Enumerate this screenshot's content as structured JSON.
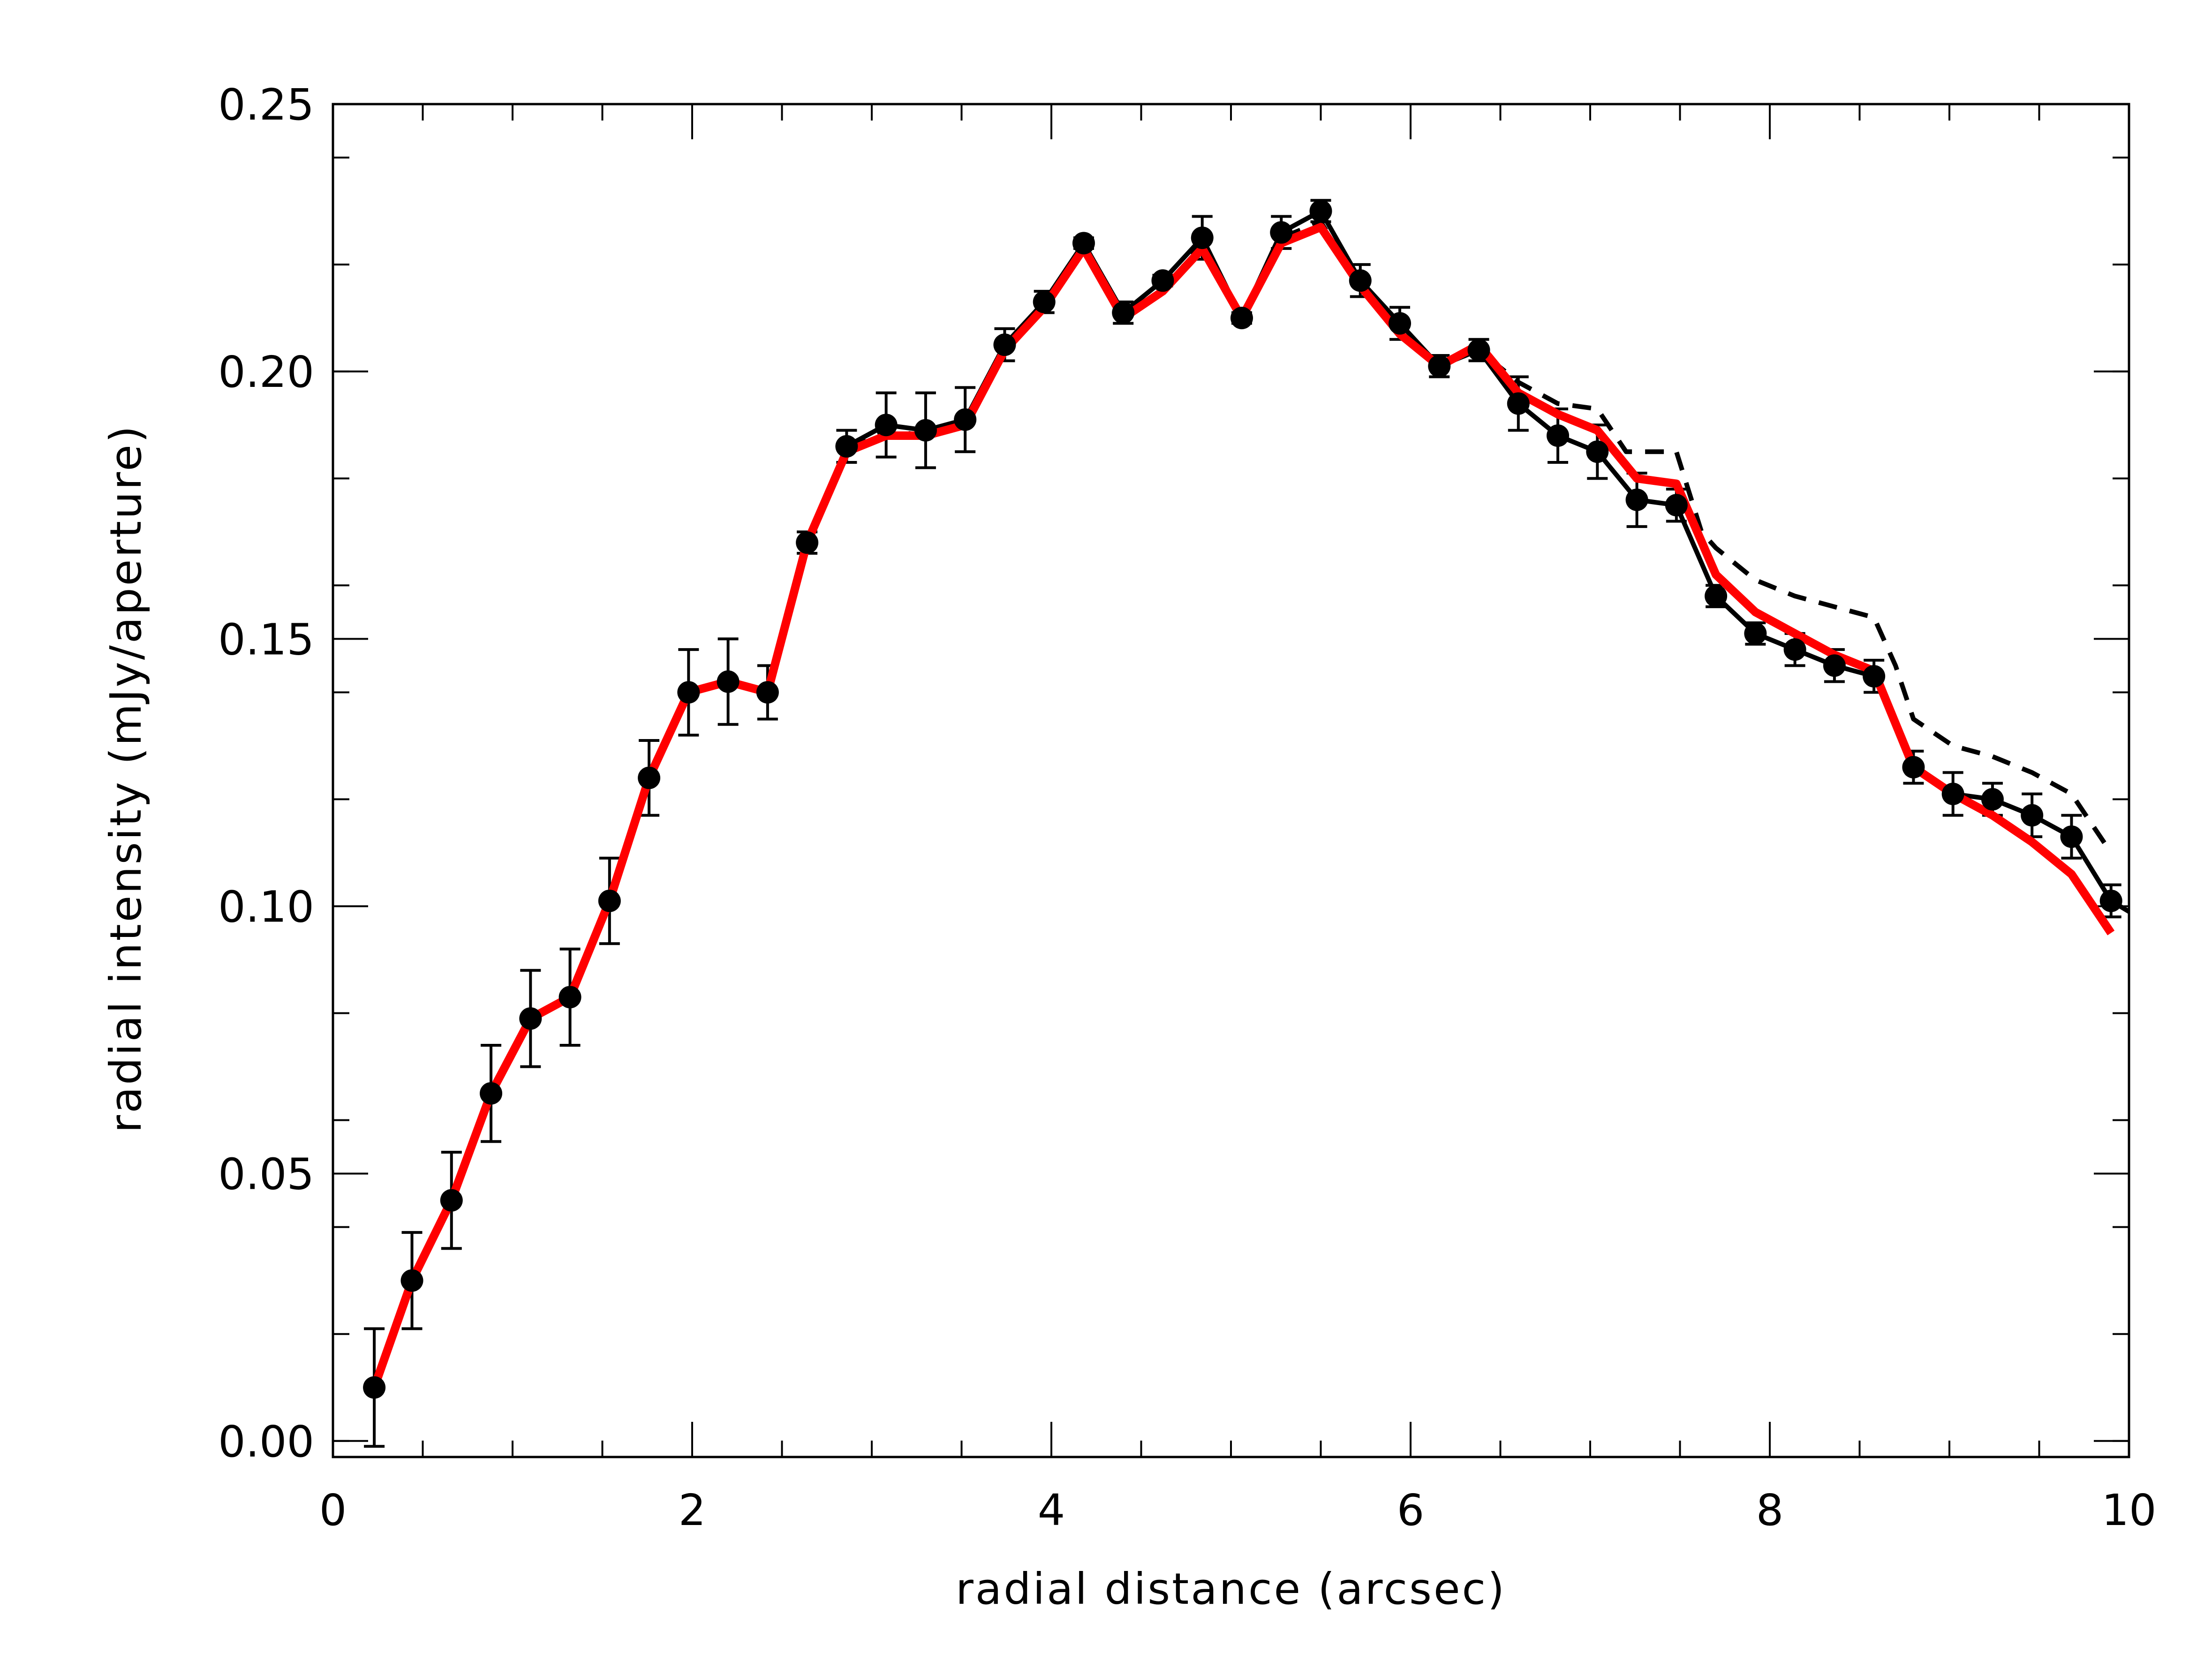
{
  "chart_data": {
    "type": "line",
    "xlabel": "radial distance (arcsec)",
    "ylabel": "radial intensity (mJy/aperture)",
    "xlim": [
      0,
      10
    ],
    "ylim": [
      -0.003,
      0.25
    ],
    "x_ticks": [
      {
        "value": 0,
        "label": "0"
      },
      {
        "value": 2,
        "label": "2"
      },
      {
        "value": 4,
        "label": "4"
      },
      {
        "value": 6,
        "label": "6"
      },
      {
        "value": 8,
        "label": "8"
      },
      {
        "value": 10,
        "label": "10"
      }
    ],
    "y_ticks": [
      {
        "value": 0.0,
        "label": "0.00"
      },
      {
        "value": 0.05,
        "label": "0.05"
      },
      {
        "value": 0.1,
        "label": "0.10"
      },
      {
        "value": 0.15,
        "label": "0.15"
      },
      {
        "value": 0.2,
        "label": "0.20"
      },
      {
        "value": 0.25,
        "label": "0.25"
      }
    ],
    "x_minor_step": 0.5,
    "y_minor_step": 0.02,
    "grid": false,
    "colors": {
      "data": "#000000",
      "dashed": "#000000",
      "model": "#ff0000"
    },
    "series": [
      {
        "style": "points-with-errorbars-and-line",
        "x": [
          0.23,
          0.44,
          0.66,
          0.88,
          1.1,
          1.32,
          1.54,
          1.76,
          1.98,
          2.2,
          2.42,
          2.64,
          2.86,
          3.08,
          3.3,
          3.52,
          3.74,
          3.96,
          4.18,
          4.4,
          4.62,
          4.84,
          5.06,
          5.28,
          5.5,
          5.72,
          5.94,
          6.16,
          6.38,
          6.6,
          6.82,
          7.04,
          7.26,
          7.48,
          7.7,
          7.92,
          8.14,
          8.36,
          8.58,
          8.8,
          9.02,
          9.24,
          9.46,
          9.68,
          9.9
        ],
        "y": [
          0.01,
          0.03,
          0.045,
          0.065,
          0.079,
          0.083,
          0.101,
          0.124,
          0.14,
          0.142,
          0.14,
          0.168,
          0.186,
          0.19,
          0.189,
          0.191,
          0.205,
          0.213,
          0.224,
          0.211,
          0.217,
          0.225,
          0.21,
          0.226,
          0.23,
          0.217,
          0.209,
          0.201,
          0.204,
          0.194,
          0.188,
          0.185,
          0.176,
          0.175,
          0.158,
          0.151,
          0.148,
          0.145,
          0.143,
          0.126,
          0.121,
          0.12,
          0.117,
          0.113,
          0.101
        ],
        "err": [
          0.011,
          0.009,
          0.009,
          0.009,
          0.009,
          0.009,
          0.008,
          0.007,
          0.008,
          0.008,
          0.005,
          0.002,
          0.003,
          0.006,
          0.007,
          0.006,
          0.003,
          0.002,
          0.001,
          0.002,
          0.001,
          0.004,
          0.001,
          0.003,
          0.002,
          0.003,
          0.003,
          0.002,
          0.002,
          0.005,
          0.005,
          0.005,
          0.005,
          0.003,
          0.002,
          0.002,
          0.003,
          0.003,
          0.003,
          0.003,
          0.004,
          0.003,
          0.004,
          0.004,
          0.003
        ],
        "extend_to_x": 10.0,
        "extend_to_y": 0.099
      },
      {
        "style": "dashed",
        "x": [
          0.23,
          0.44,
          0.66,
          0.88,
          1.1,
          1.32,
          1.54,
          1.76,
          1.98,
          2.2,
          2.42,
          2.64,
          2.86,
          3.08,
          3.3,
          3.52,
          3.74,
          3.96,
          4.18,
          4.4,
          4.62,
          4.84,
          5.06,
          5.28,
          5.5,
          5.72,
          5.94,
          6.16,
          6.38,
          6.6,
          6.82,
          7.04,
          7.2,
          7.48,
          7.62,
          7.7,
          7.92,
          8.14,
          8.36,
          8.58,
          8.7,
          8.8,
          9.02,
          9.24,
          9.46,
          9.68,
          9.9
        ],
        "y": [
          0.01,
          0.03,
          0.045,
          0.065,
          0.079,
          0.083,
          0.101,
          0.124,
          0.14,
          0.142,
          0.14,
          0.168,
          0.186,
          0.189,
          0.188,
          0.19,
          0.204,
          0.212,
          0.223,
          0.21,
          0.215,
          0.224,
          0.21,
          0.225,
          0.228,
          0.216,
          0.207,
          0.201,
          0.204,
          0.198,
          0.194,
          0.193,
          0.185,
          0.185,
          0.17,
          0.167,
          0.161,
          0.158,
          0.156,
          0.154,
          0.145,
          0.135,
          0.13,
          0.128,
          0.125,
          0.121,
          0.11
        ]
      },
      {
        "style": "solid-red",
        "x": [
          0.23,
          0.44,
          0.66,
          0.88,
          1.1,
          1.32,
          1.54,
          1.76,
          1.98,
          2.2,
          2.42,
          2.64,
          2.86,
          3.08,
          3.3,
          3.52,
          3.74,
          3.96,
          4.18,
          4.4,
          4.62,
          4.84,
          5.06,
          5.28,
          5.5,
          5.72,
          5.94,
          6.16,
          6.38,
          6.6,
          6.82,
          7.04,
          7.26,
          7.48,
          7.7,
          7.92,
          8.14,
          8.36,
          8.58,
          8.8,
          9.02,
          9.24,
          9.46,
          9.68,
          9.9
        ],
        "y": [
          0.01,
          0.03,
          0.045,
          0.065,
          0.079,
          0.083,
          0.101,
          0.124,
          0.14,
          0.142,
          0.14,
          0.168,
          0.185,
          0.188,
          0.188,
          0.19,
          0.204,
          0.212,
          0.223,
          0.21,
          0.215,
          0.223,
          0.21,
          0.224,
          0.227,
          0.216,
          0.207,
          0.201,
          0.205,
          0.196,
          0.192,
          0.189,
          0.18,
          0.179,
          0.162,
          0.155,
          0.151,
          0.147,
          0.144,
          0.126,
          0.121,
          0.117,
          0.112,
          0.106,
          0.095
        ]
      }
    ]
  }
}
